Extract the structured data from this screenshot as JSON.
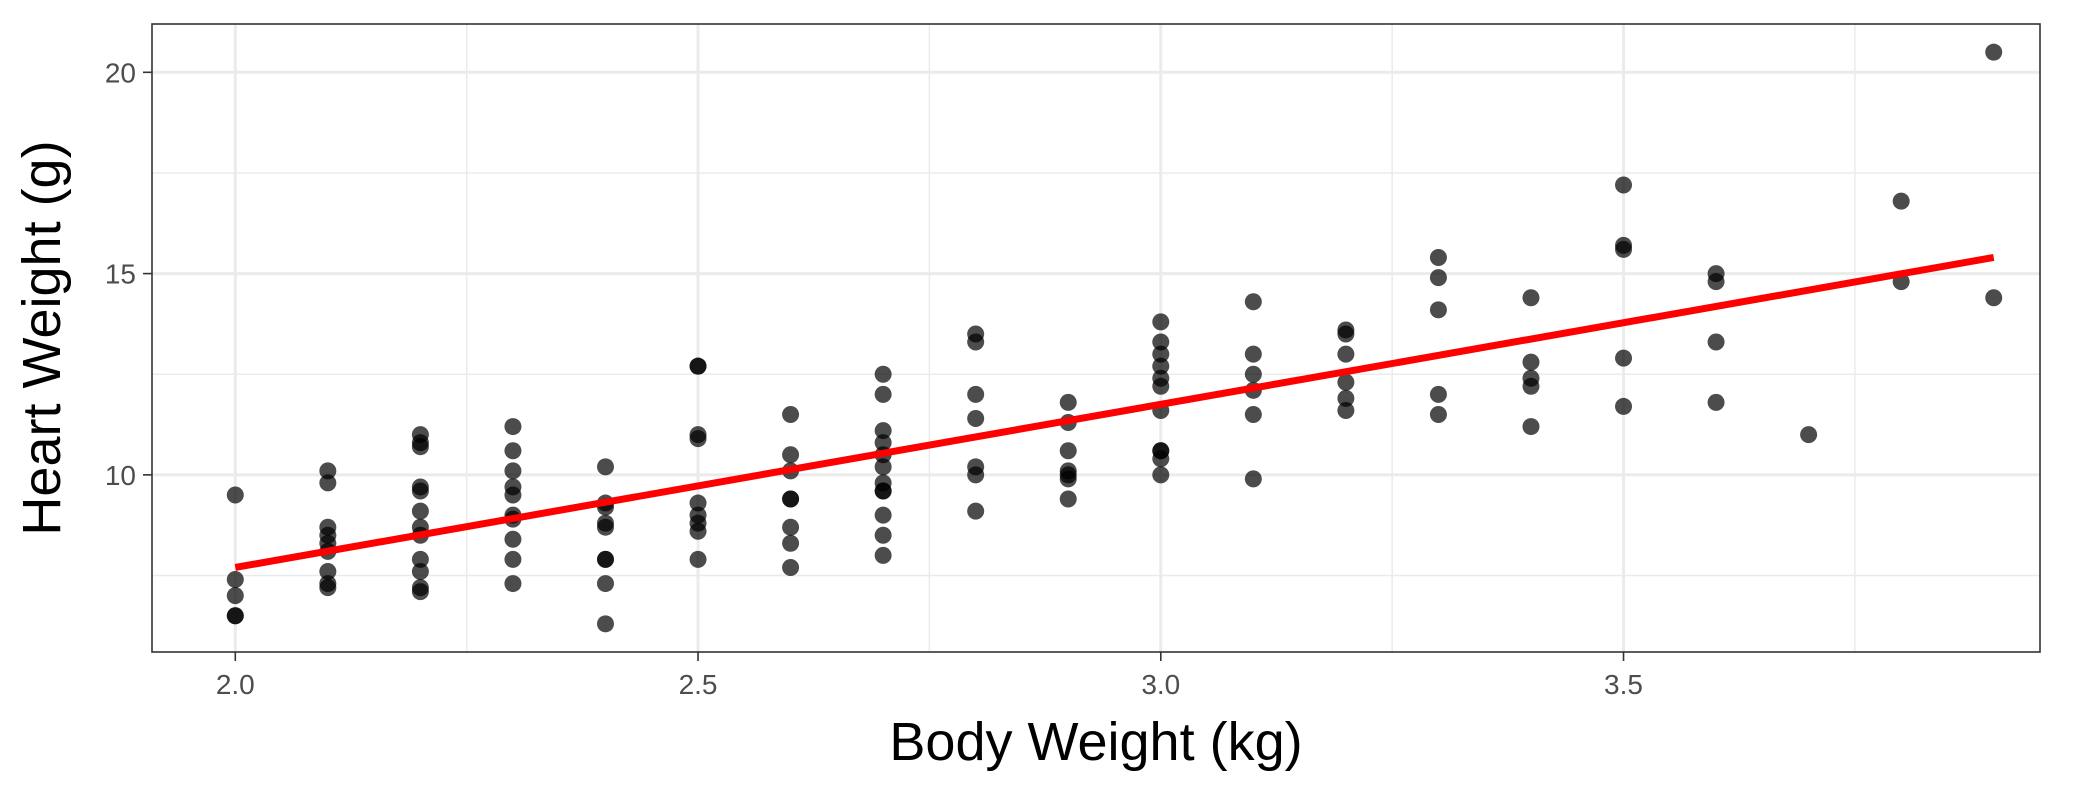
{
  "chart_data": {
    "type": "scatter",
    "xlabel": "Body Weight (kg)",
    "ylabel": "Heart Weight (g)",
    "xlim": [
      1.91,
      3.95
    ],
    "ylim": [
      5.6,
      21.2
    ],
    "x_ticks": [
      2.0,
      2.5,
      3.0,
      3.5
    ],
    "x_tick_labels": [
      "2.0",
      "2.5",
      "3.0",
      "3.5"
    ],
    "y_ticks": [
      10,
      15,
      20
    ],
    "y_tick_labels": [
      "10",
      "15",
      "20"
    ],
    "x_minor_ticks": [
      2.25,
      2.75,
      3.25,
      3.75
    ],
    "y_minor_ticks": [
      7.5,
      12.5,
      17.5
    ],
    "grid": true,
    "legend": "none",
    "point_color": "#000000",
    "fit_line": {
      "color": "#ff0000",
      "x": [
        2.0,
        3.9
      ],
      "y": [
        7.7,
        15.4
      ]
    },
    "points": [
      [
        2.0,
        9.5
      ],
      [
        2.0,
        7.4
      ],
      [
        2.0,
        7.0
      ],
      [
        2.0,
        6.5
      ],
      [
        2.0,
        6.5
      ],
      [
        2.1,
        10.1
      ],
      [
        2.1,
        9.8
      ],
      [
        2.1,
        8.7
      ],
      [
        2.1,
        8.5
      ],
      [
        2.1,
        8.3
      ],
      [
        2.1,
        8.1
      ],
      [
        2.1,
        7.6
      ],
      [
        2.1,
        7.3
      ],
      [
        2.1,
        7.2
      ],
      [
        2.2,
        11.0
      ],
      [
        2.2,
        10.8
      ],
      [
        2.2,
        10.7
      ],
      [
        2.2,
        9.7
      ],
      [
        2.2,
        9.6
      ],
      [
        2.2,
        9.1
      ],
      [
        2.2,
        8.7
      ],
      [
        2.2,
        8.5
      ],
      [
        2.2,
        7.9
      ],
      [
        2.2,
        7.6
      ],
      [
        2.2,
        7.2
      ],
      [
        2.2,
        7.1
      ],
      [
        2.3,
        11.2
      ],
      [
        2.3,
        10.6
      ],
      [
        2.3,
        10.1
      ],
      [
        2.3,
        9.7
      ],
      [
        2.3,
        9.5
      ],
      [
        2.3,
        9.0
      ],
      [
        2.3,
        8.9
      ],
      [
        2.3,
        8.4
      ],
      [
        2.3,
        7.9
      ],
      [
        2.3,
        7.3
      ],
      [
        2.4,
        10.2
      ],
      [
        2.4,
        9.3
      ],
      [
        2.4,
        9.2
      ],
      [
        2.4,
        8.8
      ],
      [
        2.4,
        8.7
      ],
      [
        2.4,
        7.9
      ],
      [
        2.4,
        7.9
      ],
      [
        2.4,
        7.3
      ],
      [
        2.4,
        6.3
      ],
      [
        2.5,
        12.7
      ],
      [
        2.5,
        12.7
      ],
      [
        2.5,
        11.0
      ],
      [
        2.5,
        10.9
      ],
      [
        2.5,
        9.3
      ],
      [
        2.5,
        9.0
      ],
      [
        2.5,
        8.8
      ],
      [
        2.5,
        8.6
      ],
      [
        2.5,
        7.9
      ],
      [
        2.6,
        11.5
      ],
      [
        2.6,
        10.5
      ],
      [
        2.6,
        10.1
      ],
      [
        2.6,
        9.4
      ],
      [
        2.6,
        9.4
      ],
      [
        2.6,
        8.7
      ],
      [
        2.6,
        8.3
      ],
      [
        2.6,
        7.7
      ],
      [
        2.7,
        12.5
      ],
      [
        2.7,
        12.0
      ],
      [
        2.7,
        11.1
      ],
      [
        2.7,
        10.8
      ],
      [
        2.7,
        10.5
      ],
      [
        2.7,
        10.2
      ],
      [
        2.7,
        9.8
      ],
      [
        2.7,
        9.6
      ],
      [
        2.7,
        9.6
      ],
      [
        2.7,
        9.0
      ],
      [
        2.7,
        8.5
      ],
      [
        2.7,
        8.0
      ],
      [
        2.8,
        13.5
      ],
      [
        2.8,
        13.3
      ],
      [
        2.8,
        12.0
      ],
      [
        2.8,
        11.4
      ],
      [
        2.8,
        10.2
      ],
      [
        2.8,
        10.0
      ],
      [
        2.8,
        9.1
      ],
      [
        2.9,
        11.8
      ],
      [
        2.9,
        11.3
      ],
      [
        2.9,
        10.6
      ],
      [
        2.9,
        10.1
      ],
      [
        2.9,
        10.0
      ],
      [
        2.9,
        9.9
      ],
      [
        2.9,
        9.4
      ],
      [
        3.0,
        13.8
      ],
      [
        3.0,
        13.3
      ],
      [
        3.0,
        13.0
      ],
      [
        3.0,
        12.7
      ],
      [
        3.0,
        12.4
      ],
      [
        3.0,
        12.2
      ],
      [
        3.0,
        11.6
      ],
      [
        3.0,
        10.6
      ],
      [
        3.0,
        10.6
      ],
      [
        3.0,
        10.4
      ],
      [
        3.0,
        10.0
      ],
      [
        3.1,
        14.3
      ],
      [
        3.1,
        13.0
      ],
      [
        3.1,
        12.5
      ],
      [
        3.1,
        12.1
      ],
      [
        3.1,
        11.5
      ],
      [
        3.1,
        9.9
      ],
      [
        3.2,
        13.6
      ],
      [
        3.2,
        13.5
      ],
      [
        3.2,
        13.0
      ],
      [
        3.2,
        12.3
      ],
      [
        3.2,
        11.9
      ],
      [
        3.2,
        11.6
      ],
      [
        3.3,
        15.4
      ],
      [
        3.3,
        14.9
      ],
      [
        3.3,
        14.1
      ],
      [
        3.3,
        12.0
      ],
      [
        3.3,
        11.5
      ],
      [
        3.4,
        14.4
      ],
      [
        3.4,
        12.8
      ],
      [
        3.4,
        12.4
      ],
      [
        3.4,
        12.2
      ],
      [
        3.4,
        11.2
      ],
      [
        3.5,
        17.2
      ],
      [
        3.5,
        15.7
      ],
      [
        3.5,
        15.6
      ],
      [
        3.5,
        12.9
      ],
      [
        3.5,
        11.7
      ],
      [
        3.6,
        15.0
      ],
      [
        3.6,
        14.8
      ],
      [
        3.6,
        13.3
      ],
      [
        3.6,
        11.8
      ],
      [
        3.7,
        11.0
      ],
      [
        3.8,
        16.8
      ],
      [
        3.8,
        14.8
      ],
      [
        3.9,
        20.5
      ],
      [
        3.9,
        14.4
      ]
    ]
  }
}
